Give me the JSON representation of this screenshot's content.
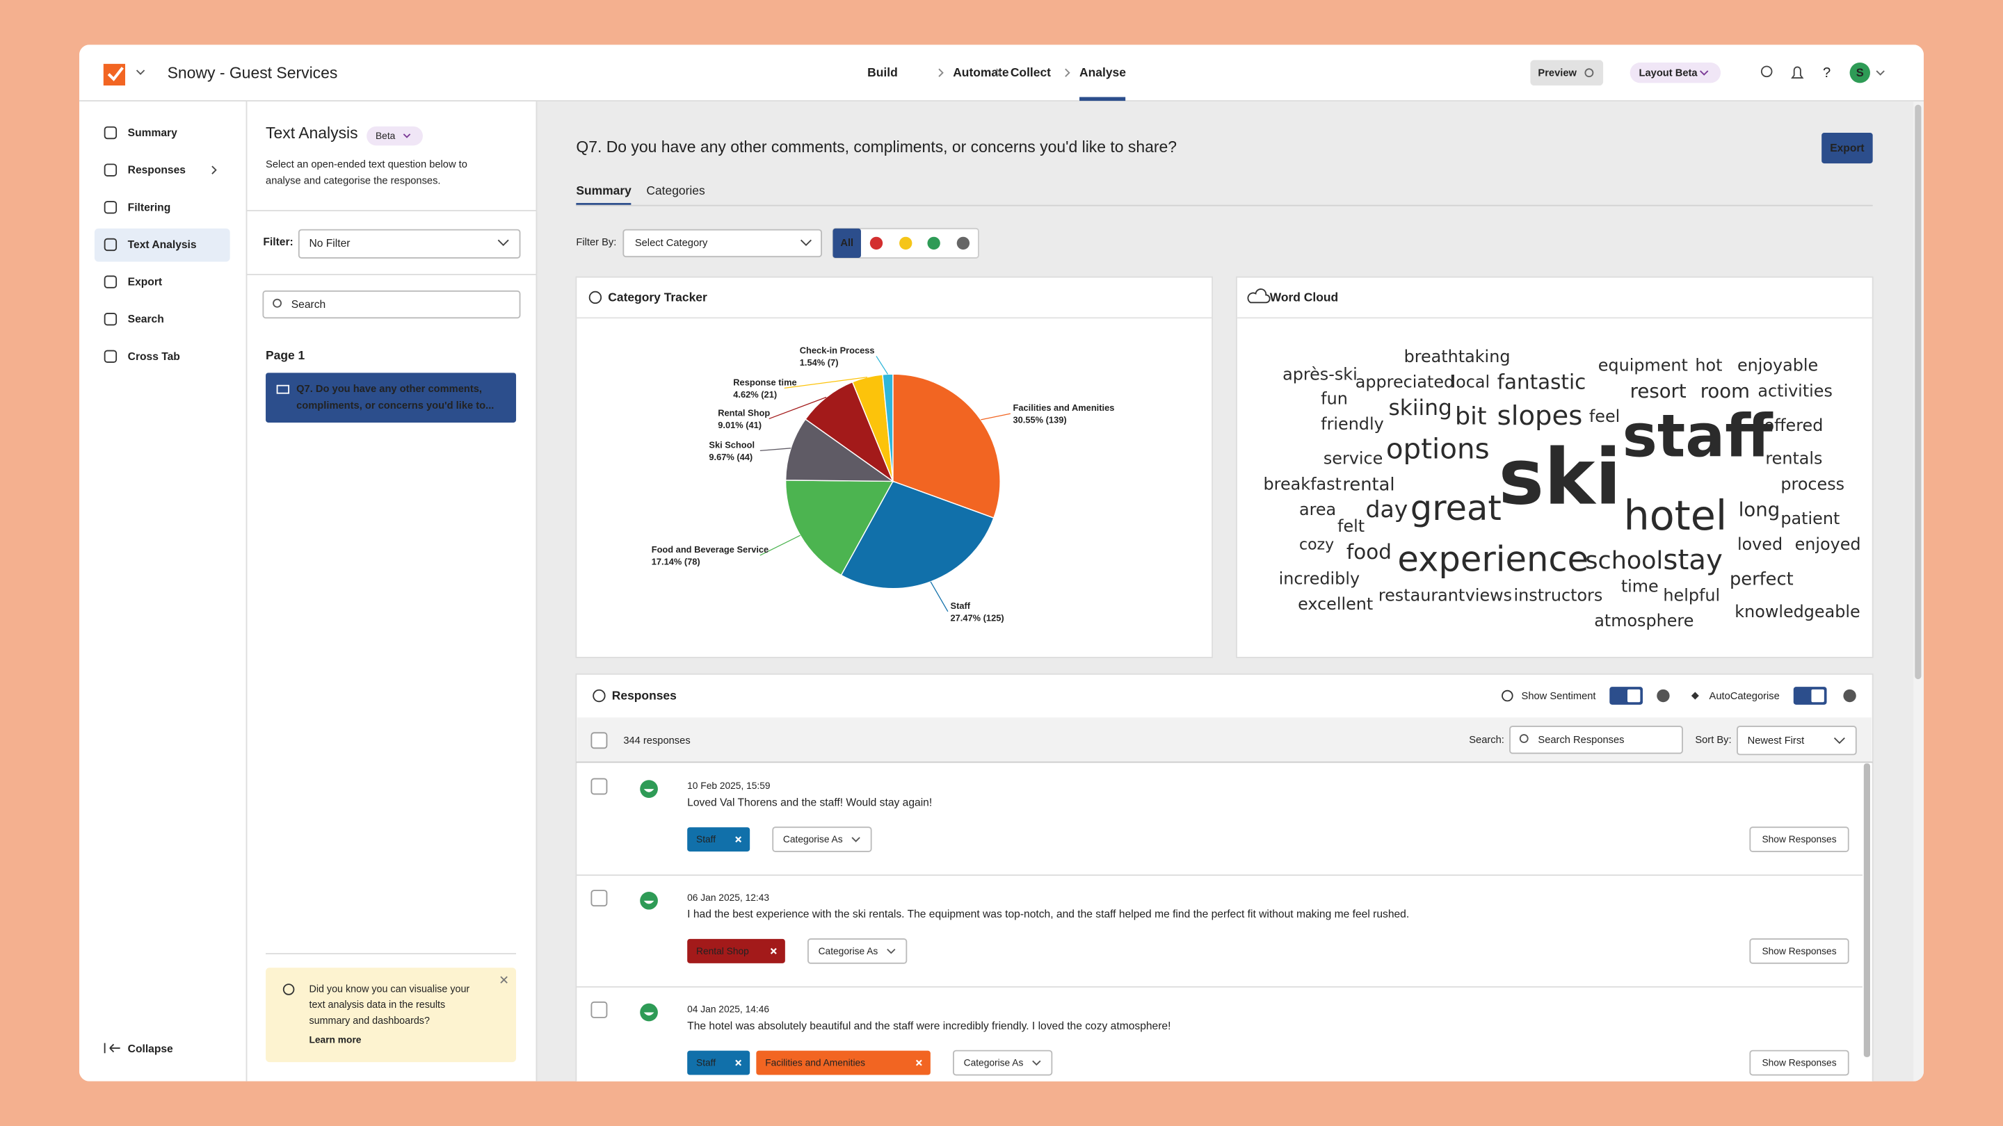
{
  "app": {
    "title": "Snowy - Guest Services",
    "nav": [
      "Build",
      "Automate",
      "Collect",
      "Analyse"
    ],
    "preview": "Preview",
    "layout": "Layout Beta",
    "avatar": "S"
  },
  "sidebar": {
    "items": [
      "Summary",
      "Responses",
      "Filtering",
      "Text Analysis",
      "Export",
      "Search",
      "Cross Tab"
    ],
    "collapse": "Collapse"
  },
  "panel": {
    "title": "Text Analysis",
    "badge": "Beta",
    "description": [
      "Select an open-ended text question below to",
      "analyse and categorise the responses."
    ],
    "filter_label": "Filter:",
    "filter_value": "No Filter",
    "search_placeholder": "Search",
    "page": "Page 1",
    "question": [
      "Q7. Do you have any other comments,",
      "compliments, or concerns you'd like to..."
    ],
    "tip": [
      "Did you know you can visualise your",
      "text analysis data in the results",
      "summary and dashboards?"
    ],
    "tip_link": "Learn more"
  },
  "main": {
    "question": "Q7. Do you have any other comments, compliments, or concerns you'd like to share?",
    "export": "Export",
    "tabs": [
      "Summary",
      "Categories"
    ],
    "filter_by": "Filter By:",
    "category_placeholder": "Select Category",
    "all": "All"
  },
  "chart_data": {
    "type": "pie",
    "title": "Category Tracker",
    "categories": [
      "Facilities and Amenities",
      "Staff",
      "Food and Beverage Service",
      "Ski School",
      "Rental Shop",
      "Response time",
      "Check-in Process"
    ],
    "values": [
      30.55,
      27.47,
      17.14,
      9.67,
      9.01,
      4.62,
      1.54
    ],
    "value_labels": [
      "30.55% (139)",
      "27.47% (125)",
      "17.14% (78)",
      "9.67% (44)",
      "9.01% (41)",
      "4.62% (21)",
      "1.54% (7)"
    ],
    "colors": [
      "#f26522",
      "#1170aa",
      "#4cb450",
      "#5f5b65",
      "#a31a1a",
      "#fcc30b",
      "#2fb6d9"
    ]
  },
  "word_cloud": {
    "title": "Word Cloud",
    "words": [
      "breathtaking",
      "après-ski",
      "appreciated",
      "local",
      "fantastic",
      "equipment",
      "hot",
      "enjoyable",
      "resort",
      "room",
      "activities",
      "fun",
      "skiing",
      "bit",
      "slopes",
      "feel",
      "staff",
      "offered",
      "friendly",
      "service",
      "options",
      "ski",
      "rentals",
      "breakfast",
      "rental",
      "process",
      "area",
      "day",
      "great",
      "hotel",
      "long",
      "patient",
      "felt",
      "cozy",
      "food",
      "experience",
      "school",
      "stay",
      "loved",
      "enjoyed",
      "incredibly",
      "time",
      "helpful",
      "perfect",
      "excellent",
      "restaurant",
      "views",
      "instructors",
      "atmosphere",
      "knowledgeable"
    ]
  },
  "responses": {
    "title": "Responses",
    "show_sentiment": "Show Sentiment",
    "autocategorise": "AutoCategorise",
    "count": "344 responses",
    "search_label": "Search:",
    "search_placeholder": "Search Responses",
    "sort_label": "Sort By:",
    "sort_value": "Newest First",
    "categorise": "Categorise As",
    "show": "Show Responses",
    "items": [
      {
        "date": "10 Feb 2025, 15:59",
        "text": "Loved Val Thorens and the staff! Would stay again!",
        "tags": [
          {
            "label": "Staff",
            "color": "#1170aa"
          }
        ]
      },
      {
        "date": "06 Jan 2025, 12:43",
        "text": "I had the best experience with the ski rentals. The equipment was top-notch, and the staff helped me find the perfect fit without making me feel rushed.",
        "tags": [
          {
            "label": "Rental Shop",
            "color": "#a31a1a"
          }
        ]
      },
      {
        "date": "04 Jan 2025, 14:46",
        "text": "The hotel was absolutely beautiful and the staff were incredibly friendly. I loved the cozy atmosphere!",
        "tags": [
          {
            "label": "Staff",
            "color": "#1170aa"
          },
          {
            "label": "Facilities and Amenities",
            "color": "#f26522"
          }
        ]
      }
    ]
  }
}
